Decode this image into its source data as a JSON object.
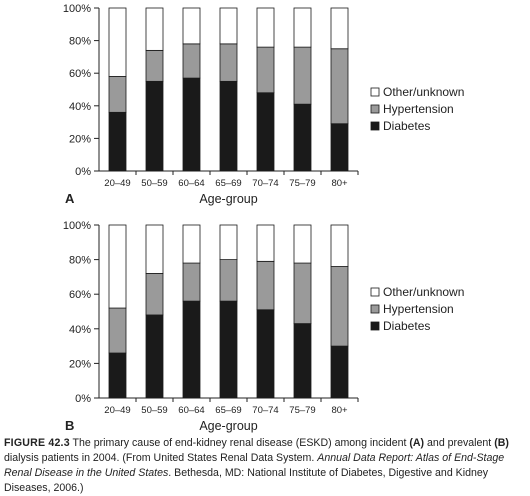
{
  "chart_data": [
    {
      "panel_label": "A",
      "type": "bar",
      "stacked": true,
      "xlabel": "Age-group",
      "categories": [
        "20–49",
        "50–59",
        "60–64",
        "65–69",
        "70–74",
        "75–79",
        "80+"
      ],
      "ylim": [
        0,
        100
      ],
      "yticks": [
        "0%",
        "20%",
        "40%",
        "60%",
        "80%",
        "100%"
      ],
      "legend_position": "right",
      "series": [
        {
          "name": "Diabetes",
          "values": [
            36,
            55,
            57,
            55,
            48,
            41,
            29
          ],
          "color": "#1a1a1a"
        },
        {
          "name": "Hypertension",
          "values": [
            22,
            19,
            21,
            23,
            28,
            35,
            46
          ],
          "color": "#9a9a9a"
        },
        {
          "name": "Other/unknown",
          "values": [
            42,
            26,
            22,
            22,
            24,
            24,
            25
          ],
          "color": "#ffffff"
        }
      ]
    },
    {
      "panel_label": "B",
      "type": "bar",
      "stacked": true,
      "xlabel": "Age-group",
      "categories": [
        "20–49",
        "50–59",
        "60–64",
        "65–69",
        "70–74",
        "75–79",
        "80+"
      ],
      "ylim": [
        0,
        100
      ],
      "yticks": [
        "0%",
        "20%",
        "40%",
        "60%",
        "80%",
        "100%"
      ],
      "legend_position": "right",
      "series": [
        {
          "name": "Diabetes",
          "values": [
            26,
            48,
            56,
            56,
            51,
            43,
            30
          ],
          "color": "#1a1a1a"
        },
        {
          "name": "Hypertension",
          "values": [
            26,
            24,
            22,
            24,
            28,
            35,
            46
          ],
          "color": "#9a9a9a"
        },
        {
          "name": "Other/unknown",
          "values": [
            48,
            28,
            22,
            20,
            21,
            22,
            24
          ],
          "color": "#ffffff"
        }
      ]
    }
  ],
  "caption": {
    "label": "FIGURE 42.3",
    "text_1": " The primary cause of end-kidney renal disease (ESKD) among incident ",
    "panel_a": "(A)",
    "text_2": " and prevalent ",
    "panel_b": "(B)",
    "text_3": " dialysis patients in 2004. (From United States Renal Data System. ",
    "italic": "Annual Data Report: Atlas of End-Stage Renal Disease in the United States",
    "text_4": ". Bethesda, MD: National Institute of Diabetes, Digestive and Kidney Diseases, 2006.)"
  }
}
